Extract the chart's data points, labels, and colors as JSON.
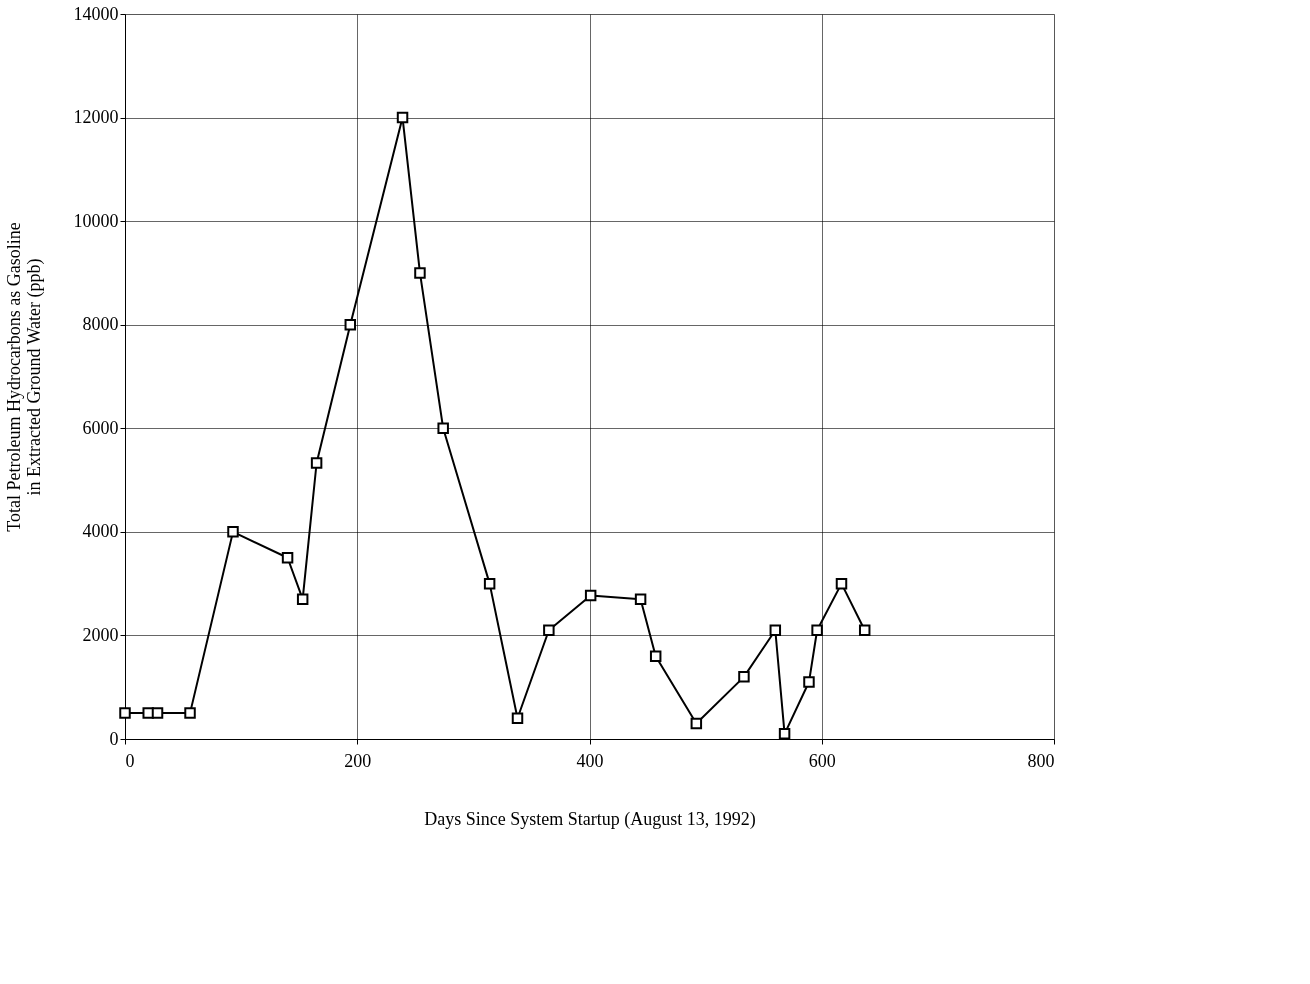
{
  "chart_data": {
    "type": "line",
    "xlabel": "Days Since System Startup (August 13, 1992)",
    "ylabel": "Total Petroleum Hydrocarbons as Gasoline\nin Extracted Ground Water (ppb)",
    "x": [
      0,
      20,
      28,
      56,
      93,
      140,
      153,
      165,
      194,
      239,
      254,
      274,
      314,
      338,
      365,
      401,
      444,
      457,
      492,
      533,
      560,
      568,
      589,
      596,
      617,
      637
    ],
    "series": [
      {
        "color": "#000000",
        "values": [
          500,
          500,
          500,
          500,
          4000,
          3500,
          2700,
          5330,
          8000,
          12000,
          9000,
          6000,
          3000,
          400,
          2100,
          2770,
          2700,
          1600,
          300,
          1200,
          2100,
          100,
          1100,
          2100,
          3000,
          2100
        ]
      }
    ],
    "xlim": [
      0,
      800
    ],
    "xticks": [
      0,
      200,
      400,
      600,
      800
    ],
    "ylim": [
      0,
      14000
    ],
    "yticks": [
      0,
      2000,
      4000,
      6000,
      8000,
      10000,
      12000,
      14000
    ],
    "grid": true,
    "marker": "square",
    "line_style": "solid",
    "legend": false
  }
}
